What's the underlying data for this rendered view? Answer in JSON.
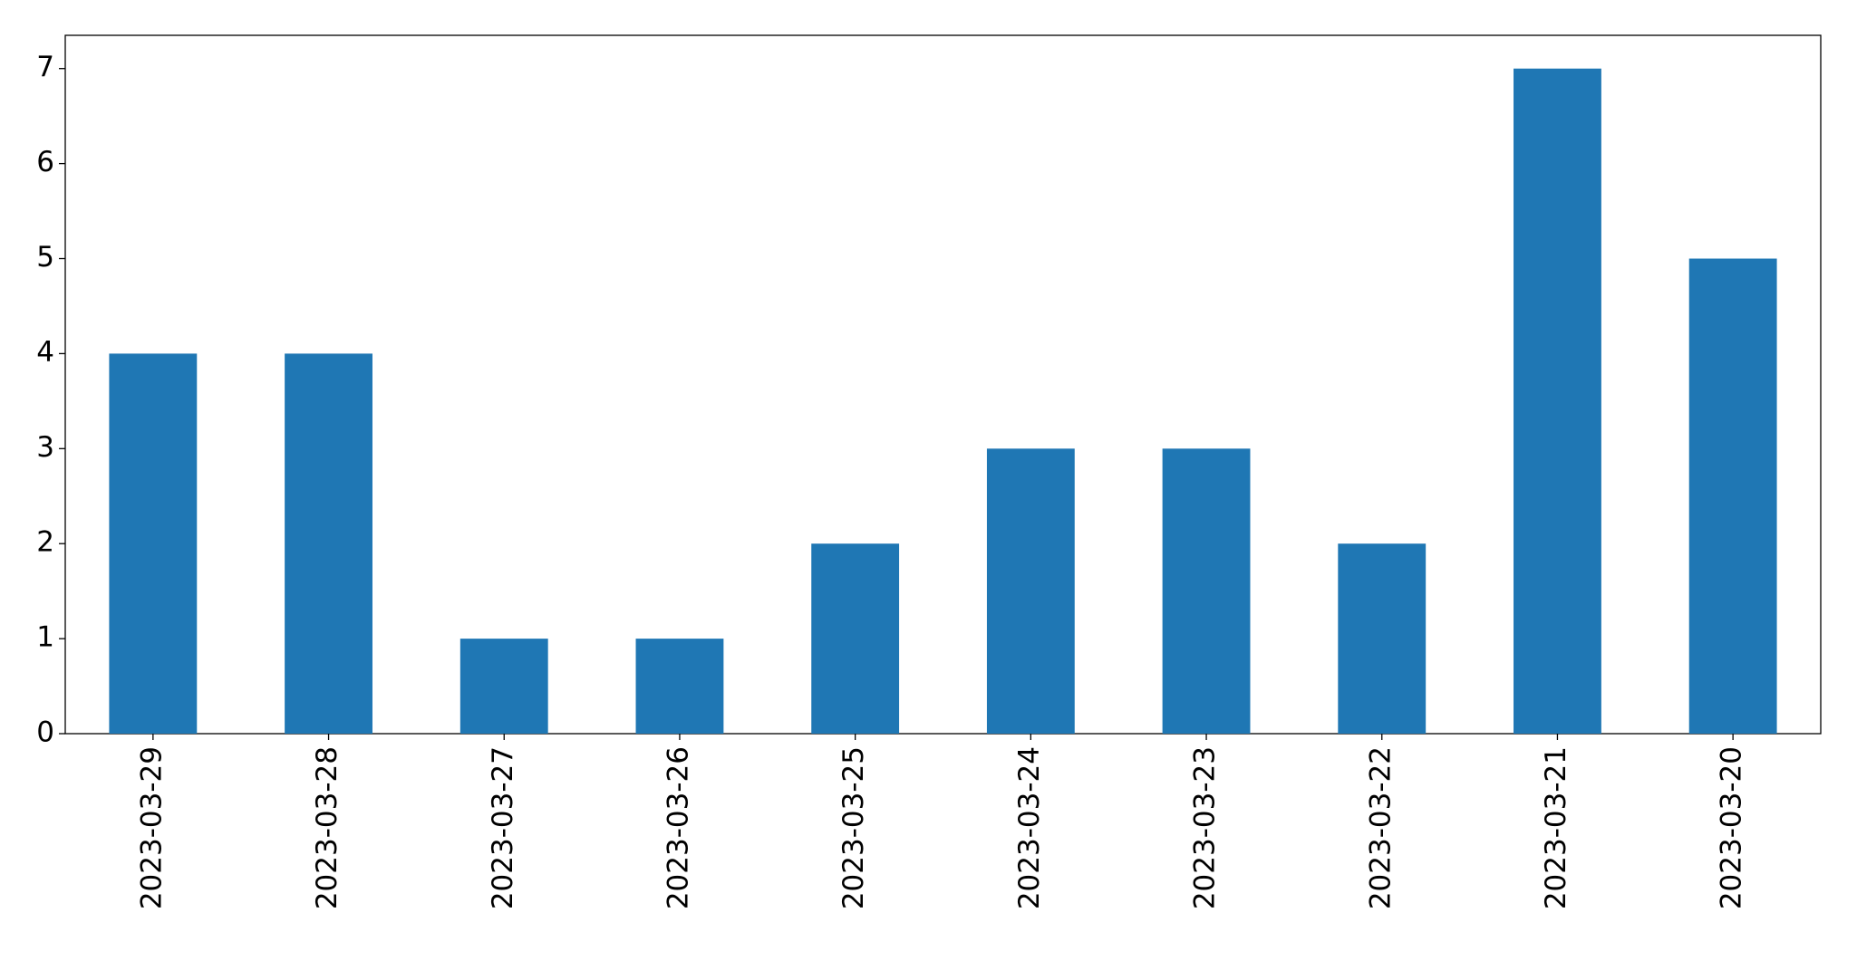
{
  "chart_data": {
    "type": "bar",
    "categories": [
      "2023-03-29",
      "2023-03-28",
      "2023-03-27",
      "2023-03-26",
      "2023-03-25",
      "2023-03-24",
      "2023-03-23",
      "2023-03-22",
      "2023-03-21",
      "2023-03-20"
    ],
    "values": [
      4,
      4,
      1,
      1,
      2,
      3,
      3,
      2,
      7,
      5
    ],
    "color": "#1f77b4",
    "ylim": [
      0,
      7.35
    ],
    "yticks": [
      0,
      1,
      2,
      3,
      4,
      5,
      6,
      7
    ],
    "grid": false
  }
}
